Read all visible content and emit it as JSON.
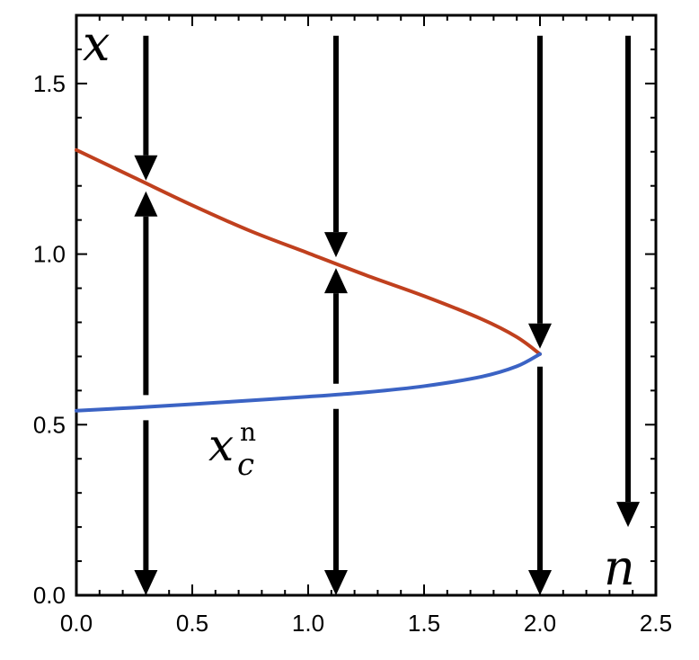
{
  "chart_data": {
    "type": "line",
    "title": "",
    "xlabel": "n",
    "ylabel": "x",
    "xlim": [
      0,
      2.5
    ],
    "ylim": [
      0,
      1.7
    ],
    "x_ticks": [
      "0.0",
      "0.5",
      "1.0",
      "1.5",
      "2.0",
      "2.5"
    ],
    "y_ticks": [
      "0.0",
      "0.5",
      "1.0",
      "1.5"
    ],
    "grid": false,
    "series": [
      {
        "name": "",
        "color": "#c0401e",
        "x": [
          0.0,
          0.25,
          0.5,
          0.75,
          1.0,
          1.25,
          1.5,
          1.75,
          1.9,
          2.0
        ],
        "y": [
          1.305,
          1.224,
          1.143,
          1.068,
          1.003,
          0.938,
          0.877,
          0.809,
          0.757,
          0.707
        ]
      },
      {
        "name": "",
        "color": "#3b63c4",
        "x": [
          0.0,
          0.25,
          0.5,
          0.75,
          1.0,
          1.25,
          1.5,
          1.75,
          1.9,
          2.0
        ],
        "y": [
          0.541,
          0.55,
          0.56,
          0.571,
          0.582,
          0.595,
          0.613,
          0.641,
          0.671,
          0.707
        ]
      }
    ],
    "annotation": {
      "base": "x",
      "subscript": "c",
      "superscript": "n"
    },
    "flow_arrows": [
      {
        "x": 0.3,
        "y_top": 1.64,
        "y_bottom": 0.0,
        "stable": 1.2,
        "unstable": 0.55
      },
      {
        "x": 1.12,
        "y_top": 1.64,
        "y_bottom": 0.0,
        "stable": 0.975,
        "unstable": 0.583
      },
      {
        "x": 2.0,
        "y_top": 1.64,
        "y_bottom": 0.0,
        "stable": 0.707,
        "unstable": 0.707
      },
      {
        "x": 2.38,
        "y_top": 1.64,
        "y_bottom": 0.2,
        "stable": null,
        "unstable": null
      }
    ],
    "arrow_color": "#000000"
  }
}
